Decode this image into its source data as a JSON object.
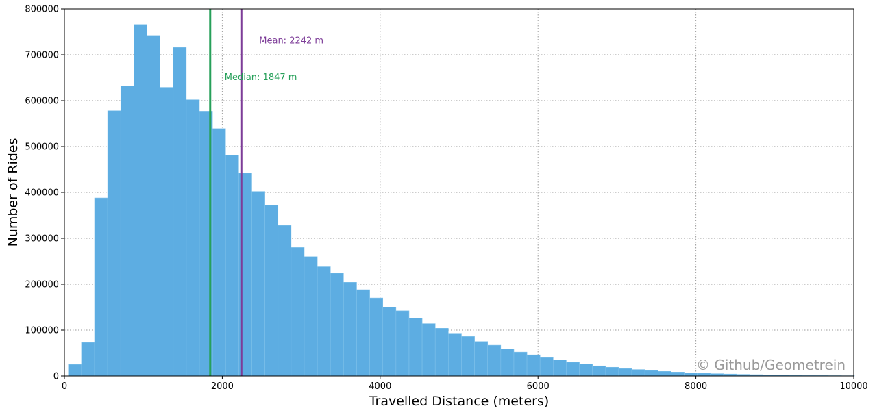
{
  "chart_data": {
    "type": "bar",
    "title": "",
    "xlabel": "Travelled Distance (meters)",
    "ylabel": "Number of Rides",
    "xlim": [
      0,
      10000
    ],
    "ylim": [
      0,
      800000
    ],
    "grid": true,
    "bar_color": "#5DADE2",
    "x_ticks": [
      0,
      2000,
      4000,
      6000,
      8000,
      10000
    ],
    "x_tick_labels": [
      "0",
      "2000",
      "4000",
      "6000",
      "8000",
      "10000"
    ],
    "y_ticks": [
      0,
      100000,
      200000,
      300000,
      400000,
      500000,
      600000,
      700000,
      800000
    ],
    "y_tick_labels": [
      "0",
      "100000",
      "200000",
      "300000",
      "400000",
      "500000",
      "600000",
      "700000",
      "800000"
    ],
    "bin_width": 166,
    "bin_starts": [
      50,
      216,
      382,
      548,
      714,
      880,
      1046,
      1212,
      1378,
      1544,
      1710,
      1876,
      2042,
      2208,
      2374,
      2540,
      2706,
      2872,
      3038,
      3204,
      3370,
      3536,
      3702,
      3868,
      4034,
      4200,
      4366,
      4532,
      4698,
      4864,
      5030,
      5196,
      5362,
      5528,
      5694,
      5860,
      6026,
      6192,
      6358,
      6524,
      6690,
      6856,
      7022,
      7188,
      7354,
      7520,
      7686,
      7852,
      8018,
      8184,
      8350,
      8516,
      8682,
      8848,
      9014,
      9180,
      9346,
      9512,
      9678,
      9844
    ],
    "values": [
      25000,
      73000,
      388000,
      578000,
      632000,
      766000,
      742000,
      629000,
      716000,
      602000,
      577000,
      539000,
      481000,
      442000,
      402000,
      372000,
      328000,
      280000,
      260000,
      238000,
      224000,
      204000,
      188000,
      170000,
      150000,
      142000,
      126000,
      114000,
      104000,
      93000,
      86000,
      75000,
      67000,
      59000,
      52000,
      46000,
      40000,
      35000,
      30000,
      26000,
      22000,
      19000,
      16000,
      14000,
      12000,
      10000,
      8500,
      7000,
      6000,
      5000,
      4200,
      3500,
      2900,
      2400,
      2000,
      1600,
      1300,
      1000,
      800,
      600
    ],
    "reference_lines": [
      {
        "value": 1847,
        "color": "#27A05A",
        "label": "Median: 1847 m"
      },
      {
        "value": 2242,
        "color": "#7D3C98",
        "label": "Mean: 2242 m"
      }
    ],
    "watermark": "© Github/Geometrein"
  }
}
